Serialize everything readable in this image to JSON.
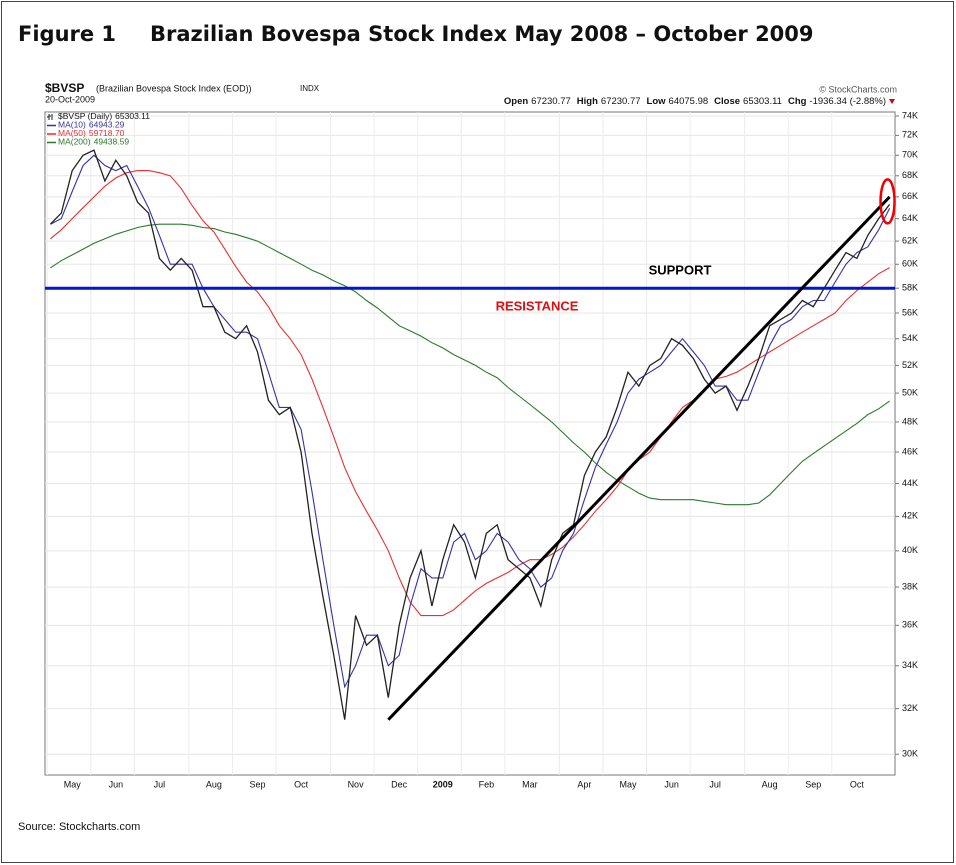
{
  "figure_label": "Figure 1",
  "title": "Brazilian Bovespa Stock Index May 2008 – October 2009",
  "source": "Source: Stockcharts.com",
  "chart_data": {
    "type": "line",
    "symbol": "$BVSP",
    "subtitle": "(Brazilian Bovespa Stock Index (EOD))",
    "exchange": "INDX",
    "date": "20-Oct-2009",
    "credit": "© StockCharts.com",
    "quote": [
      {
        "label": "Open",
        "value": 67230.77
      },
      {
        "label": "High",
        "value": 67230.77
      },
      {
        "label": "Low",
        "value": 64075.98
      },
      {
        "label": "Close",
        "value": 65303.11
      },
      {
        "label": "Chg",
        "value": "-1936.34 (-2.88%)"
      }
    ],
    "categories": [
      null,
      null,
      "May",
      null,
      null,
      null,
      "Jun",
      null,
      null,
      null,
      "Jul",
      null,
      null,
      null,
      null,
      "Aug",
      null,
      null,
      null,
      "Sep",
      null,
      null,
      null,
      "Oct",
      null,
      null,
      null,
      null,
      "Nov",
      null,
      null,
      null,
      "Dec",
      null,
      null,
      null,
      "2009",
      null,
      null,
      null,
      "Feb",
      null,
      null,
      null,
      "Mar",
      null,
      null,
      null,
      null,
      "Apr",
      null,
      null,
      null,
      "May",
      null,
      null,
      null,
      "Jun",
      null,
      null,
      null,
      "Jul",
      null,
      null,
      null,
      null,
      "Aug",
      null,
      null,
      null,
      "Sep",
      null,
      null,
      null,
      "Oct",
      null,
      null,
      null
    ],
    "series": [
      {
        "name": "$BVSP (Daily)",
        "color": "#222222",
        "values": [
          63500,
          64500,
          68500,
          70000,
          70500,
          67500,
          69500,
          68000,
          65500,
          64500,
          60500,
          59500,
          60500,
          59500,
          56500,
          56500,
          54500,
          54000,
          55000,
          53000,
          49500,
          48500,
          49000,
          46000,
          41000,
          37500,
          34500,
          31500,
          36500,
          35000,
          35500,
          32500,
          36000,
          38500,
          40000,
          37000,
          39500,
          41500,
          40500,
          38500,
          41000,
          41500,
          39500,
          39000,
          38500,
          37000,
          39500,
          41000,
          41500,
          44500,
          46000,
          47000,
          49000,
          51500,
          50500,
          52000,
          52500,
          54000,
          53500,
          52500,
          51000,
          50000,
          50500,
          48800,
          50500,
          52500,
          55000,
          55500,
          56000,
          57000,
          56500,
          58000,
          59500,
          61000,
          60500,
          62500,
          64000,
          65303.11
        ]
      },
      {
        "name": "MA(10)",
        "color": "#3333aa",
        "values": [
          63500,
          64000,
          66500,
          69000,
          70000,
          69000,
          68500,
          69000,
          67000,
          65000,
          62500,
          60000,
          60000,
          60000,
          58000,
          56500,
          55500,
          54500,
          54500,
          54000,
          51500,
          49000,
          49000,
          47500,
          43500,
          39500,
          36000,
          33000,
          34000,
          35500,
          35500,
          34000,
          34500,
          37000,
          39000,
          38500,
          38500,
          40500,
          41000,
          39500,
          40000,
          41000,
          40500,
          39500,
          39000,
          38000,
          38500,
          40000,
          41000,
          43000,
          45000,
          46500,
          48000,
          50000,
          51000,
          51500,
          52000,
          53000,
          54000,
          53000,
          52000,
          50500,
          50500,
          49500,
          49500,
          51500,
          53500,
          55000,
          55500,
          56500,
          57000,
          57000,
          58500,
          60000,
          61000,
          61500,
          63000,
          64943.29
        ]
      },
      {
        "name": "MA(50)",
        "color": "#e83030",
        "values": [
          62200,
          63000,
          64000,
          65000,
          66000,
          67000,
          67800,
          68300,
          68500,
          68500,
          68300,
          68000,
          66800,
          65200,
          63800,
          62800,
          61300,
          59800,
          58500,
          57700,
          56500,
          55000,
          54000,
          52800,
          51000,
          49000,
          47000,
          45000,
          43500,
          42300,
          41200,
          40000,
          38500,
          37200,
          36500,
          36500,
          36500,
          36800,
          37300,
          37800,
          38200,
          38500,
          38800,
          39200,
          39500,
          39500,
          39800,
          40200,
          40800,
          41500,
          42300,
          43000,
          43800,
          44800,
          45500,
          46000,
          47000,
          48000,
          49000,
          49500,
          50300,
          51000,
          51200,
          51500,
          52000,
          52500,
          53000,
          53500,
          54000,
          54500,
          55000,
          55500,
          56000,
          57000,
          57800,
          58500,
          59200,
          59718.7
        ],
        "value_labels": [
          null,
          null,
          null,
          null,
          null,
          null,
          null,
          null,
          null,
          null,
          null,
          null,
          null,
          null,
          null,
          null,
          null,
          null,
          null,
          null,
          null,
          null,
          null,
          null,
          null,
          null,
          null,
          null,
          null,
          null,
          null,
          null,
          null,
          null,
          null,
          null,
          null,
          null,
          null,
          null,
          null,
          null,
          null,
          null,
          null,
          null,
          null,
          null,
          null,
          null,
          null,
          null,
          null,
          null,
          null,
          null,
          null,
          null,
          null,
          null,
          null,
          null,
          null,
          null,
          null,
          null,
          null,
          null,
          null,
          null,
          null,
          null,
          null,
          null,
          null,
          null,
          null,
          "59718.70"
        ]
      },
      {
        "name": "MA(200)",
        "color": "#2a7a2a",
        "values": [
          59700,
          60300,
          60800,
          61300,
          61800,
          62200,
          62600,
          62900,
          63200,
          63400,
          63500,
          63500,
          63500,
          63400,
          63200,
          63100,
          62800,
          62600,
          62300,
          62000,
          61500,
          61000,
          60500,
          60000,
          59500,
          59100,
          58600,
          58200,
          57700,
          57000,
          56400,
          55700,
          55000,
          54600,
          54200,
          53700,
          53300,
          52800,
          52400,
          52000,
          51500,
          51100,
          50400,
          49800,
          49200,
          48600,
          48000,
          47300,
          46600,
          46000,
          45300,
          44700,
          44200,
          43800,
          43400,
          43100,
          43000,
          43000,
          43000,
          43000,
          42900,
          42800,
          42700,
          42700,
          42700,
          42800,
          43300,
          44000,
          44700,
          45400,
          45900,
          46400,
          46900,
          47400,
          47900,
          48500,
          48900,
          49438.59
        ]
      }
    ],
    "trendline": {
      "color": "#000000",
      "values": [
        null,
        null,
        null,
        null,
        null,
        null,
        null,
        null,
        null,
        null,
        null,
        null,
        null,
        null,
        null,
        null,
        null,
        null,
        null,
        null,
        null,
        null,
        null,
        null,
        null,
        null,
        null,
        null,
        null,
        null,
        null,
        31500,
        null,
        null,
        null,
        null,
        null,
        null,
        null,
        null,
        null,
        null,
        null,
        null,
        null,
        null,
        null,
        null,
        null,
        null,
        null,
        null,
        null,
        null,
        null,
        null,
        null,
        null,
        null,
        null,
        null,
        null,
        null,
        null,
        null,
        null,
        null,
        null,
        null,
        null,
        null,
        null,
        null,
        null,
        null,
        null,
        null,
        66000
      ]
    },
    "support": {
      "value": 58000,
      "color": "#0018c8"
    },
    "annotations": [
      {
        "text": "SUPPORT",
        "color": "#000000"
      },
      {
        "text": "RESISTANCE",
        "color": "#e01010"
      }
    ],
    "log_scale": true,
    "grid": true,
    "ylim": [
      29130,
      74420
    ],
    "yticks": [
      {
        "value": 30000,
        "label": "30K"
      },
      {
        "value": 32000,
        "label": "32K"
      },
      {
        "value": 34000,
        "label": "34K"
      },
      {
        "value": 36000,
        "label": "36K"
      },
      {
        "value": 38000,
        "label": "38K"
      },
      {
        "value": 40000,
        "label": "40K"
      },
      {
        "value": 42000,
        "label": "42K"
      },
      {
        "value": 44000,
        "label": "44K"
      },
      {
        "value": 46000,
        "label": "46K"
      },
      {
        "value": 48000,
        "label": "48K"
      },
      {
        "value": 50000,
        "label": "50K"
      },
      {
        "value": 52000,
        "label": "52K"
      },
      {
        "value": 54000,
        "label": "54K"
      },
      {
        "value": 56000,
        "label": "56K"
      },
      {
        "value": 58000,
        "label": "58K"
      },
      {
        "value": 60000,
        "label": "60K"
      },
      {
        "value": 62000,
        "label": "62K"
      },
      {
        "value": 64000,
        "label": "64K"
      },
      {
        "value": 66000,
        "label": "66K"
      },
      {
        "value": 68000,
        "label": "68K"
      },
      {
        "value": 70000,
        "label": "70K"
      },
      {
        "value": 72000,
        "label": "72K"
      },
      {
        "value": 74000,
        "label": "74K"
      }
    ]
  }
}
